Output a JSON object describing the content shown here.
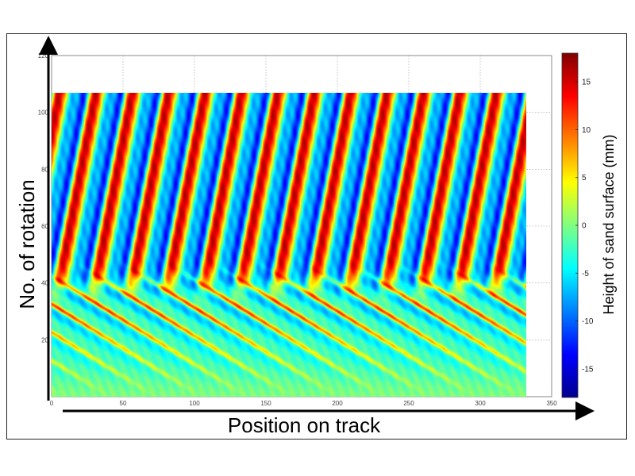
{
  "chart_data": {
    "type": "heatmap",
    "xlabel": "Position on track",
    "ylabel": "No. of rotation",
    "colorbar_label": "Height of sand surface (mm)",
    "xlim": [
      0,
      350
    ],
    "ylim": [
      0,
      120
    ],
    "x_ticks": [
      "0",
      "50",
      "100",
      "150",
      "200",
      "250",
      "300",
      "350"
    ],
    "y_ticks": [
      "20",
      "40",
      "60",
      "80",
      "100",
      "120"
    ],
    "data_extent": {
      "x": [
        0,
        332
      ],
      "y": [
        0,
        107
      ]
    },
    "color_range": [
      -18,
      18
    ],
    "colorbar_ticks": [
      "-15",
      "-10",
      "-5",
      "0",
      "5",
      "10",
      "15"
    ],
    "colormap": "jet",
    "grid": true,
    "pattern": {
      "ripple_count": 13,
      "ripple_period_position": 25.5,
      "amplitude_mm": 16,
      "onset_rotation": 40,
      "drift_position_per_rotation": 0.38
    }
  }
}
